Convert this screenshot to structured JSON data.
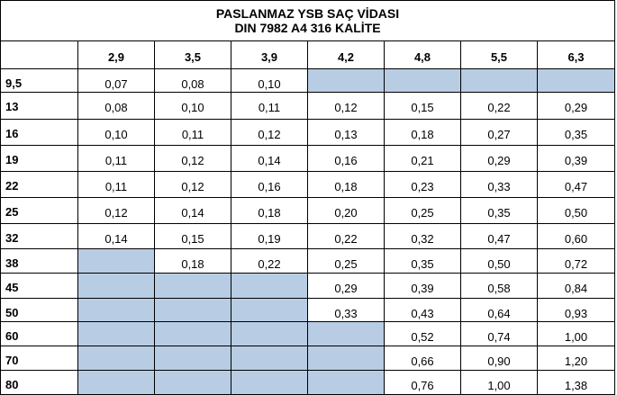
{
  "title": {
    "line1": "PASLANMAZ YSB SAÇ VİDASI",
    "line2": "DIN 7982 A4 316 KALİTE"
  },
  "table": {
    "corner": "",
    "columns": [
      "2,9",
      "3,5",
      "3,9",
      "4,2",
      "4,8",
      "5,5",
      "6,3"
    ],
    "rows": [
      {
        "length": "9,5",
        "values": [
          "0,07",
          "0,08",
          "0,10",
          null,
          null,
          null,
          null
        ]
      },
      {
        "length": "13",
        "values": [
          "0,08",
          "0,10",
          "0,11",
          "0,12",
          "0,15",
          "0,22",
          "0,29"
        ]
      },
      {
        "length": "16",
        "values": [
          "0,10",
          "0,11",
          "0,12",
          "0,13",
          "0,18",
          "0,27",
          "0,35"
        ]
      },
      {
        "length": "19",
        "values": [
          "0,11",
          "0,12",
          "0,14",
          "0,16",
          "0,21",
          "0,29",
          "0,39"
        ]
      },
      {
        "length": "22",
        "values": [
          "0,11",
          "0,12",
          "0,16",
          "0,18",
          "0,23",
          "0,33",
          "0,47"
        ]
      },
      {
        "length": "25",
        "values": [
          "0,12",
          "0,14",
          "0,18",
          "0,20",
          "0,25",
          "0,35",
          "0,50"
        ]
      },
      {
        "length": "32",
        "values": [
          "0,14",
          "0,15",
          "0,19",
          "0,22",
          "0,32",
          "0,47",
          "0,60"
        ]
      },
      {
        "length": "38",
        "values": [
          null,
          "0,18",
          "0,22",
          "0,25",
          "0,35",
          "0,50",
          "0,72"
        ]
      },
      {
        "length": "45",
        "values": [
          null,
          null,
          null,
          "0,29",
          "0,39",
          "0,58",
          "0,84"
        ]
      },
      {
        "length": "50",
        "values": [
          null,
          null,
          null,
          "0,33",
          "0,43",
          "0,64",
          "0,93"
        ]
      },
      {
        "length": "60",
        "values": [
          null,
          null,
          null,
          null,
          "0,52",
          "0,74",
          "1,00"
        ]
      },
      {
        "length": "70",
        "values": [
          null,
          null,
          null,
          null,
          "0,66",
          "0,90",
          "1,20"
        ]
      },
      {
        "length": "80",
        "values": [
          null,
          null,
          null,
          null,
          "0,76",
          "1,00",
          "1,38"
        ]
      }
    ]
  },
  "colors": {
    "empty_cell_fill": "#b8cce4",
    "grid_line": "#000000"
  }
}
